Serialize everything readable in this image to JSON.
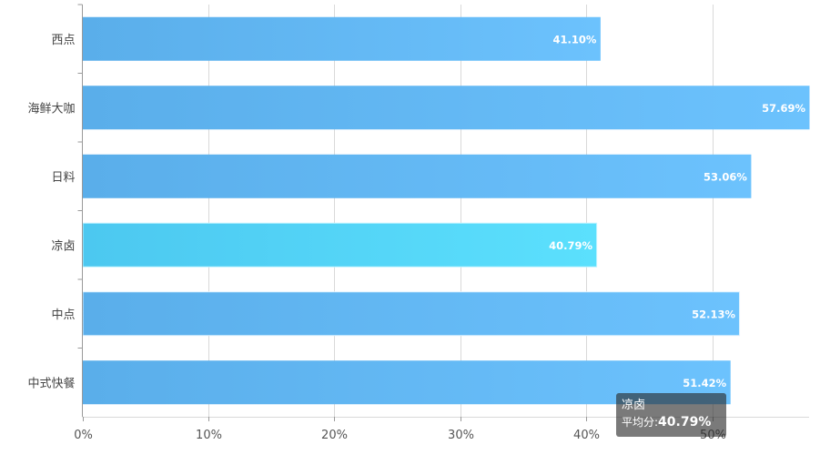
{
  "chart_data": {
    "type": "bar",
    "orientation": "horizontal",
    "categories": [
      "西点",
      "海鲜大咖",
      "日料",
      "凉卤",
      "中点",
      "中式快餐"
    ],
    "values": [
      41.1,
      57.69,
      53.06,
      40.79,
      52.13,
      51.42
    ],
    "value_labels": [
      "41.10%",
      "57.69%",
      "53.06%",
      "40.79%",
      "52.13%",
      "51.42%"
    ],
    "x_ticks": [
      "0%",
      "10%",
      "20%",
      "30%",
      "40%",
      "50%"
    ],
    "xlim": [
      0,
      57.69
    ],
    "highlighted_category": "凉卤",
    "grid": true,
    "colors": {
      "bar_start": "#5aaeea",
      "bar_end": "#6cc2fd",
      "highlight_start": "#4cc8f0",
      "highlight_end": "#5be0fd",
      "grid": "#d9d9d9",
      "axis": "#999999"
    }
  },
  "tooltip": {
    "title": "凉卤",
    "label": "平均分:",
    "value": "40.79%"
  }
}
